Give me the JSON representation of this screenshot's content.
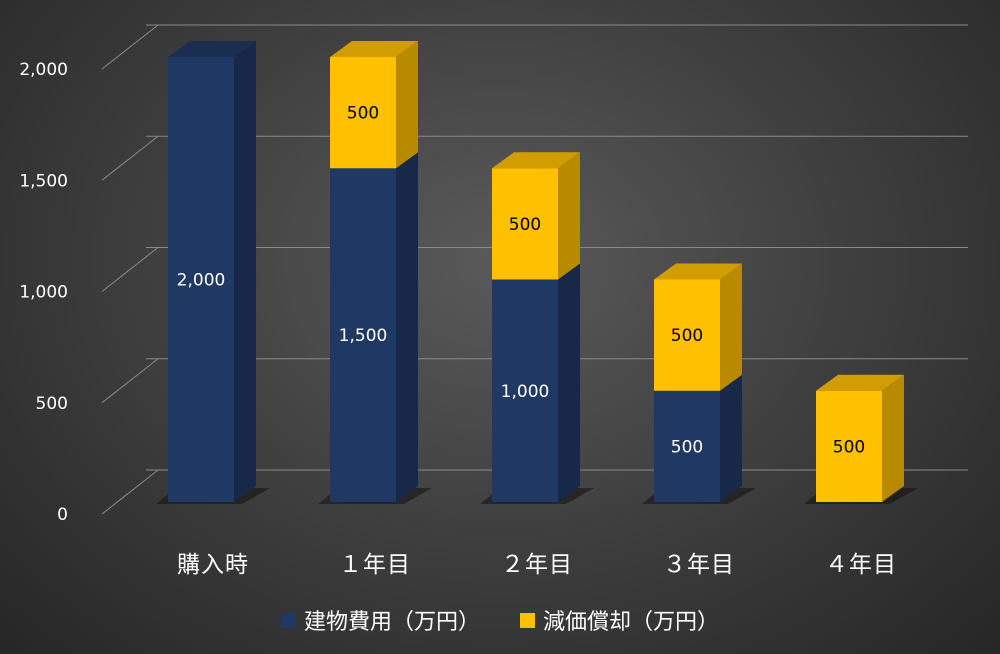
{
  "chart_data": {
    "type": "bar",
    "stacked": true,
    "style": "3d",
    "categories": [
      "購入時",
      "１年目",
      "２年目",
      "３年目",
      "４年目"
    ],
    "series": [
      {
        "name": "建物費用（万円）",
        "values": [
          2000,
          1500,
          1000,
          500,
          0
        ],
        "color": "#203864"
      },
      {
        "name": "減価償却（万円）",
        "values": [
          0,
          500,
          500,
          500,
          500
        ],
        "color": "#ffc000"
      }
    ],
    "data_labels": {
      "建物費用（万円）": [
        "2,000",
        "1,500",
        "1,000",
        "500",
        ""
      ],
      "減価償却（万円）": [
        "",
        "500",
        "500",
        "500",
        "500"
      ]
    },
    "y_ticks": [
      "0",
      "500",
      "1,000",
      "1,500",
      "2,000"
    ],
    "ylim": [
      0,
      2000
    ],
    "grid": true,
    "legend_position": "bottom",
    "colors": {
      "background": "#404040",
      "text": "#ffffff",
      "gridline": "#8a8a8a"
    }
  }
}
